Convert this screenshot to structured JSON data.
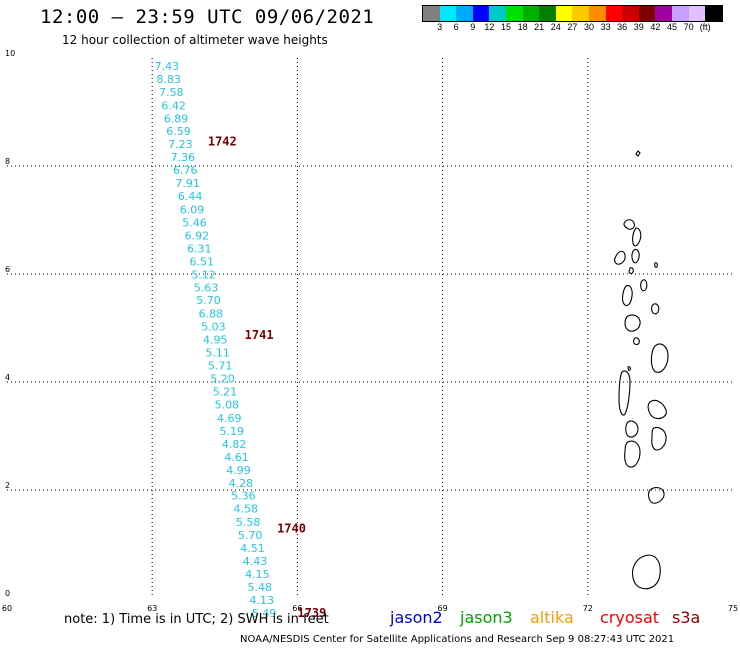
{
  "header": {
    "title": "12:00 – 23:59 UTC 09/06/2021",
    "subtitle": "12 hour collection of altimeter wave heights"
  },
  "colorbar": {
    "swatches": [
      "#808080",
      "#00e8ff",
      "#00a8ff",
      "#0000ff",
      "#00c8c8",
      "#00e000",
      "#00b000",
      "#008000",
      "#ffff00",
      "#ffc800",
      "#ff8c00",
      "#ff0000",
      "#c80000",
      "#800000",
      "#a000a0",
      "#c8a0ff",
      "#e0c0ff",
      "#000000"
    ],
    "labels": [
      "3",
      "6",
      "9",
      "12",
      "15",
      "18",
      "21",
      "24",
      "27",
      "30",
      "33",
      "36",
      "39",
      "42",
      "45",
      "70",
      "(ft)"
    ]
  },
  "chart_data": {
    "type": "scatter",
    "xlim": [
      60,
      75
    ],
    "ylim": [
      0,
      10
    ],
    "x_ticks": [
      "60",
      "63",
      "66",
      "69",
      "72",
      "75"
    ],
    "y_ticks": [
      "0",
      "2",
      "4",
      "6",
      "8",
      "10"
    ],
    "grid": true,
    "wave_heights": [
      {
        "lon": 63.05,
        "lat": 9.78,
        "value": "7.43"
      },
      {
        "lon": 63.09,
        "lat": 9.54,
        "value": "8.83"
      },
      {
        "lon": 63.14,
        "lat": 9.3,
        "value": "7.58"
      },
      {
        "lon": 63.19,
        "lat": 9.05,
        "value": "6.42"
      },
      {
        "lon": 63.24,
        "lat": 8.81,
        "value": "6.89"
      },
      {
        "lon": 63.29,
        "lat": 8.57,
        "value": "6.59"
      },
      {
        "lon": 63.33,
        "lat": 8.33,
        "value": "7.23"
      },
      {
        "lon": 63.38,
        "lat": 8.09,
        "value": "7.36"
      },
      {
        "lon": 63.43,
        "lat": 7.85,
        "value": "6.76"
      },
      {
        "lon": 63.48,
        "lat": 7.61,
        "value": "7.91"
      },
      {
        "lon": 63.53,
        "lat": 7.37,
        "value": "6.44"
      },
      {
        "lon": 63.57,
        "lat": 7.12,
        "value": "6.09"
      },
      {
        "lon": 63.62,
        "lat": 6.88,
        "value": "5.46"
      },
      {
        "lon": 63.67,
        "lat": 6.64,
        "value": "6.92"
      },
      {
        "lon": 63.72,
        "lat": 6.4,
        "value": "6.31"
      },
      {
        "lon": 63.77,
        "lat": 6.16,
        "value": "6.51"
      },
      {
        "lon": 63.81,
        "lat": 5.92,
        "value": "5.12"
      },
      {
        "lon": 63.86,
        "lat": 5.68,
        "value": "5.63"
      },
      {
        "lon": 63.91,
        "lat": 5.44,
        "value": "5.70"
      },
      {
        "lon": 63.96,
        "lat": 5.19,
        "value": "6.88"
      },
      {
        "lon": 64.01,
        "lat": 4.95,
        "value": "5.03"
      },
      {
        "lon": 64.05,
        "lat": 4.71,
        "value": "4.95"
      },
      {
        "lon": 64.1,
        "lat": 4.47,
        "value": "5.11"
      },
      {
        "lon": 64.15,
        "lat": 4.23,
        "value": "5.71"
      },
      {
        "lon": 64.2,
        "lat": 3.99,
        "value": "5.20"
      },
      {
        "lon": 64.25,
        "lat": 3.75,
        "value": "5.21"
      },
      {
        "lon": 64.29,
        "lat": 3.51,
        "value": "5.08"
      },
      {
        "lon": 64.34,
        "lat": 3.26,
        "value": "4.69"
      },
      {
        "lon": 64.39,
        "lat": 3.02,
        "value": "5.19"
      },
      {
        "lon": 64.44,
        "lat": 2.78,
        "value": "4.82"
      },
      {
        "lon": 64.49,
        "lat": 2.54,
        "value": "4.61"
      },
      {
        "lon": 64.53,
        "lat": 2.3,
        "value": "4.99"
      },
      {
        "lon": 64.58,
        "lat": 2.06,
        "value": "4.28"
      },
      {
        "lon": 64.63,
        "lat": 1.82,
        "value": "5.36"
      },
      {
        "lon": 64.68,
        "lat": 1.58,
        "value": "4.58"
      },
      {
        "lon": 64.73,
        "lat": 1.33,
        "value": "5.58"
      },
      {
        "lon": 64.77,
        "lat": 1.09,
        "value": "5.70"
      },
      {
        "lon": 64.82,
        "lat": 0.85,
        "value": "4.51"
      },
      {
        "lon": 64.87,
        "lat": 0.61,
        "value": "4.43"
      },
      {
        "lon": 64.92,
        "lat": 0.37,
        "value": "4.15"
      },
      {
        "lon": 64.97,
        "lat": 0.13,
        "value": "5.48"
      },
      {
        "lon": 65.01,
        "lat": -0.11,
        "value": "4.13"
      },
      {
        "lon": 65.06,
        "lat": -0.35,
        "value": "5.49"
      }
    ],
    "orbit_labels": [
      {
        "lon": 64.15,
        "lat": 8.38,
        "label": "1742"
      },
      {
        "lon": 64.91,
        "lat": 4.8,
        "label": "1741"
      },
      {
        "lon": 65.58,
        "lat": 1.21,
        "label": "1740"
      },
      {
        "lon": 66.0,
        "lat": -0.35,
        "label": "1739"
      }
    ]
  },
  "footer": {
    "note": "note:  1) Time is in UTC;  2) SWH is in feet",
    "satellites": [
      {
        "name": "jason2",
        "color": "#0000e0"
      },
      {
        "name": "jason3",
        "color": "#00a000"
      },
      {
        "name": "altika",
        "color": "#ff9a00"
      },
      {
        "name": "cryosat",
        "color": "#ff0000"
      },
      {
        "name": "s3a",
        "color": "#8b0000"
      }
    ],
    "credit": "NOAA/NESDIS Center for Satellite Applications and Research     Sep  9 08:27:43 UTC 2021"
  }
}
